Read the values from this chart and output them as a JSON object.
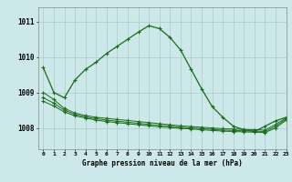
{
  "title": "Graphe pression niveau de la mer (hPa)",
  "bg_color": "#cce8e8",
  "grid_color": "#aacccc",
  "line_color": "#1a6b1a",
  "xlim": [
    -0.5,
    23
  ],
  "ylim": [
    1007.4,
    1011.4
  ],
  "yticks": [
    1008,
    1009,
    1010,
    1011
  ],
  "xticks": [
    0,
    1,
    2,
    3,
    4,
    5,
    6,
    7,
    8,
    9,
    10,
    11,
    12,
    13,
    14,
    15,
    16,
    17,
    18,
    19,
    20,
    21,
    22,
    23
  ],
  "series_main": [
    1009.7,
    1009.0,
    1008.85,
    1009.35,
    1009.65,
    1009.85,
    1010.1,
    1010.3,
    1010.5,
    1010.7,
    1010.88,
    1010.8,
    1010.55,
    1010.2,
    1009.65,
    1009.1,
    1008.6,
    1008.3,
    1008.05,
    1007.95,
    1007.9,
    1008.05,
    1008.2,
    1008.3
  ],
  "series_flat1": [
    1009.0,
    1008.8,
    1008.55,
    1008.42,
    1008.35,
    1008.3,
    1008.27,
    1008.24,
    1008.21,
    1008.18,
    1008.15,
    1008.12,
    1008.09,
    1008.06,
    1008.04,
    1008.02,
    1008.0,
    1007.98,
    1007.97,
    1007.96,
    1007.95,
    1007.94,
    1008.1,
    1008.28
  ],
  "series_flat2": [
    1008.85,
    1008.7,
    1008.5,
    1008.38,
    1008.31,
    1008.26,
    1008.22,
    1008.19,
    1008.16,
    1008.13,
    1008.1,
    1008.07,
    1008.05,
    1008.02,
    1008.0,
    1007.98,
    1007.96,
    1007.94,
    1007.93,
    1007.92,
    1007.91,
    1007.9,
    1008.05,
    1008.25
  ],
  "series_flat3": [
    1008.75,
    1008.62,
    1008.45,
    1008.34,
    1008.28,
    1008.22,
    1008.18,
    1008.15,
    1008.12,
    1008.09,
    1008.06,
    1008.03,
    1008.01,
    1007.99,
    1007.97,
    1007.95,
    1007.93,
    1007.91,
    1007.9,
    1007.89,
    1007.88,
    1007.87,
    1008.0,
    1008.22
  ]
}
